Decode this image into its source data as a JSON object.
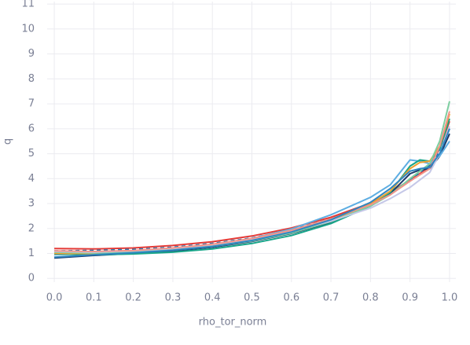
{
  "chart_data": {
    "type": "line",
    "x_label": "rho_tor_norm",
    "y_label": "q",
    "x": [
      0,
      0.1,
      0.2,
      0.3,
      0.4,
      0.5,
      0.6,
      0.7,
      0.8,
      0.85,
      0.9,
      0.925,
      0.95,
      0.975,
      1.0
    ],
    "series": [
      {
        "color": "#e53935",
        "values": [
          1.2,
          1.18,
          1.22,
          1.32,
          1.47,
          1.7,
          2.02,
          2.45,
          3.02,
          3.45,
          3.95,
          4.2,
          4.5,
          5.2,
          6.3
        ]
      },
      {
        "color": "#1f77b4",
        "dashed": true,
        "values": [
          1.1,
          1.12,
          1.16,
          1.25,
          1.4,
          1.62,
          1.95,
          2.38,
          2.98,
          3.4,
          3.95,
          4.25,
          4.55,
          5.1,
          6.0
        ]
      },
      {
        "color": "#1a3a6b",
        "values": [
          0.82,
          0.92,
          1.0,
          1.1,
          1.25,
          1.48,
          1.8,
          2.25,
          2.9,
          3.4,
          4.2,
          4.35,
          4.4,
          4.9,
          5.8
        ]
      },
      {
        "color": "#5dade2",
        "values": [
          0.95,
          1.0,
          1.08,
          1.18,
          1.34,
          1.6,
          1.98,
          2.55,
          3.25,
          3.75,
          4.75,
          4.7,
          4.6,
          4.9,
          5.5
        ]
      },
      {
        "color": "#17a589",
        "values": [
          0.98,
          0.95,
          0.98,
          1.05,
          1.18,
          1.4,
          1.72,
          2.2,
          2.9,
          3.45,
          4.5,
          4.75,
          4.7,
          5.2,
          6.4
        ]
      },
      {
        "color": "#f0a030",
        "values": [
          1.0,
          1.0,
          1.05,
          1.14,
          1.29,
          1.52,
          1.86,
          2.32,
          2.98,
          3.5,
          4.4,
          4.65,
          4.7,
          5.3,
          6.6
        ]
      },
      {
        "color": "#7dcea0",
        "values": [
          1.05,
          1.02,
          1.06,
          1.14,
          1.28,
          1.5,
          1.82,
          2.28,
          2.9,
          3.35,
          4.0,
          4.3,
          4.6,
          5.5,
          7.1
        ]
      },
      {
        "color": "#c5c8e8",
        "values": [
          1.08,
          1.05,
          1.1,
          1.2,
          1.35,
          1.58,
          1.9,
          2.3,
          2.82,
          3.2,
          3.65,
          3.95,
          4.25,
          5.0,
          6.1
        ]
      },
      {
        "color": "#f1948a",
        "values": [
          1.1,
          1.08,
          1.12,
          1.22,
          1.37,
          1.6,
          1.93,
          2.38,
          2.95,
          3.35,
          3.9,
          4.15,
          4.4,
          5.3,
          6.7
        ]
      },
      {
        "color": "#2e86c1",
        "values": [
          0.85,
          0.95,
          1.03,
          1.13,
          1.28,
          1.52,
          1.86,
          2.35,
          3.05,
          3.6,
          4.3,
          4.4,
          4.45,
          5.0,
          6.0
        ]
      }
    ],
    "xlim": [
      -0.018,
      1.016
    ],
    "ylim": [
      -0.15,
      11.1
    ],
    "xticks": [
      {
        "value": 0,
        "label": "0.0"
      },
      {
        "value": 0.1,
        "label": "0.1"
      },
      {
        "value": 0.2,
        "label": "0.2"
      },
      {
        "value": 0.3,
        "label": "0.3"
      },
      {
        "value": 0.4,
        "label": "0.4"
      },
      {
        "value": 0.5,
        "label": "0.5"
      },
      {
        "value": 0.6,
        "label": "0.6"
      },
      {
        "value": 0.7,
        "label": "0.7"
      },
      {
        "value": 0.8,
        "label": "0.8"
      },
      {
        "value": 0.9,
        "label": "0.9"
      },
      {
        "value": 1.0,
        "label": "1.0"
      }
    ],
    "yticks": [
      0,
      1,
      2,
      3,
      4,
      5,
      6,
      7,
      8,
      9,
      10,
      11
    ],
    "grid": true
  }
}
